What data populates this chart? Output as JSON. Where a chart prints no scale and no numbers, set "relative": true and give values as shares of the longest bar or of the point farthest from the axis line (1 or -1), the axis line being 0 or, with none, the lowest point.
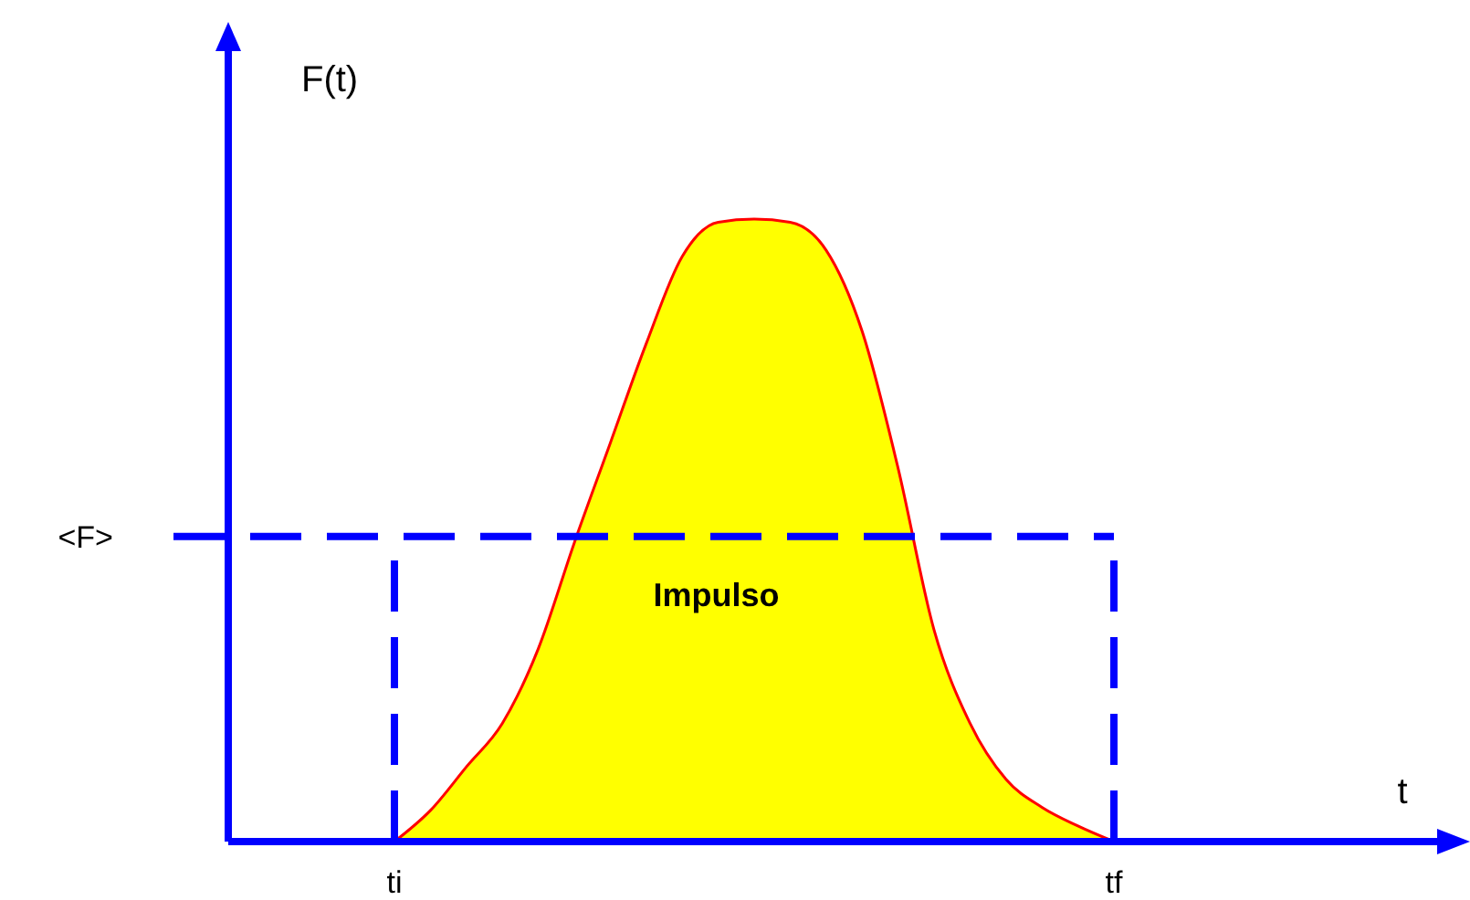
{
  "chart_data": {
    "type": "area",
    "relative": true,
    "ylabel": "F(t)",
    "xlabel": "t",
    "legend": false,
    "grid": false,
    "annotations": [
      "Impulso"
    ],
    "categories": [
      null,
      null,
      null,
      null,
      "ti",
      null,
      null,
      null,
      null,
      null,
      null,
      null,
      null,
      null,
      null,
      null,
      null,
      null,
      null,
      null,
      null,
      null,
      null,
      null,
      "tf",
      null,
      null,
      null,
      null,
      null,
      null,
      null,
      null,
      null
    ],
    "ref_lines": [
      {
        "axis": "y",
        "value": 0.49,
        "label": "<F>",
        "color": "#0000ff",
        "line_style": "dashed"
      },
      {
        "axis": "x",
        "value": "ti",
        "color": "#0000ff",
        "line_style": "dashed"
      },
      {
        "axis": "x",
        "value": "tf",
        "color": "#0000ff",
        "line_style": "dashed"
      }
    ],
    "series": [
      {
        "color": "#ffff00",
        "values": [
          null,
          null,
          null,
          null,
          0,
          0.05,
          0.12,
          0.19,
          0.31,
          0.48,
          0.64,
          0.8,
          0.94,
          0.995,
          1,
          0.995,
          0.95,
          0.82,
          0.6,
          0.34,
          0.19,
          0.1,
          0.055,
          0.025,
          0,
          null,
          null,
          null,
          null,
          null,
          null,
          null,
          null,
          null
        ]
      }
    ]
  }
}
